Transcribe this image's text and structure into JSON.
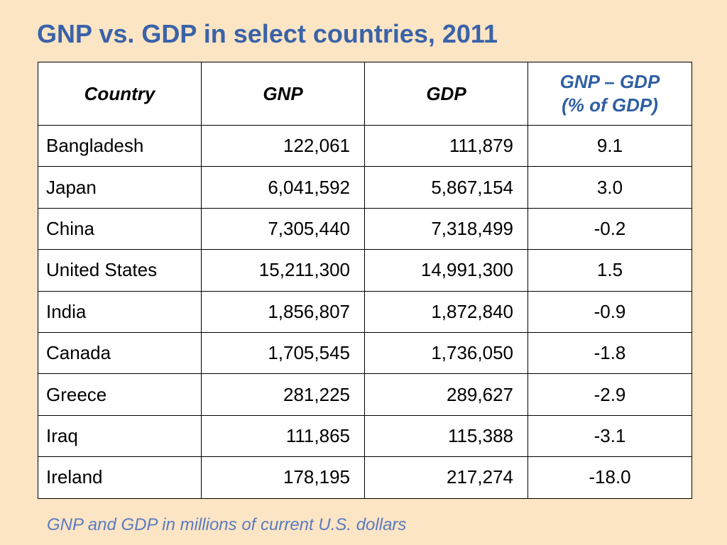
{
  "slide": {
    "title": "GNP vs. GDP in select countries, 2011",
    "footnote": "GNP and GDP in millions of current U.S. dollars"
  },
  "colors": {
    "background": "#fbe5c5",
    "title": "#3a62a8",
    "header_highlight": "#2e5fa3",
    "footnote": "#5b7bbf",
    "table_background": "#ffffff",
    "border": "#000000"
  },
  "table": {
    "headers": {
      "country": "Country",
      "gnp": "GNP",
      "gdp": "GDP",
      "diff_line1": "GNP – GDP",
      "diff_line2": "(% of GDP)"
    },
    "rows": [
      {
        "country": "Bangladesh",
        "gnp": "122,061",
        "gdp": "111,879",
        "diff": "9.1"
      },
      {
        "country": "Japan",
        "gnp": "6,041,592",
        "gdp": "5,867,154",
        "diff": "3.0"
      },
      {
        "country": "China",
        "gnp": "7,305,440",
        "gdp": "7,318,499",
        "diff": "-0.2"
      },
      {
        "country": "United States",
        "gnp": "15,211,300",
        "gdp": "14,991,300",
        "diff": "1.5"
      },
      {
        "country": "India",
        "gnp": "1,856,807",
        "gdp": "1,872,840",
        "diff": "-0.9"
      },
      {
        "country": "Canada",
        "gnp": "1,705,545",
        "gdp": "1,736,050",
        "diff": "-1.8"
      },
      {
        "country": "Greece",
        "gnp": "281,225",
        "gdp": "289,627",
        "diff": "-2.9"
      },
      {
        "country": "Iraq",
        "gnp": "111,865",
        "gdp": "115,388",
        "diff": "-3.1"
      },
      {
        "country": "Ireland",
        "gnp": "178,195",
        "gdp": "217,274",
        "diff": "-18.0"
      }
    ]
  }
}
